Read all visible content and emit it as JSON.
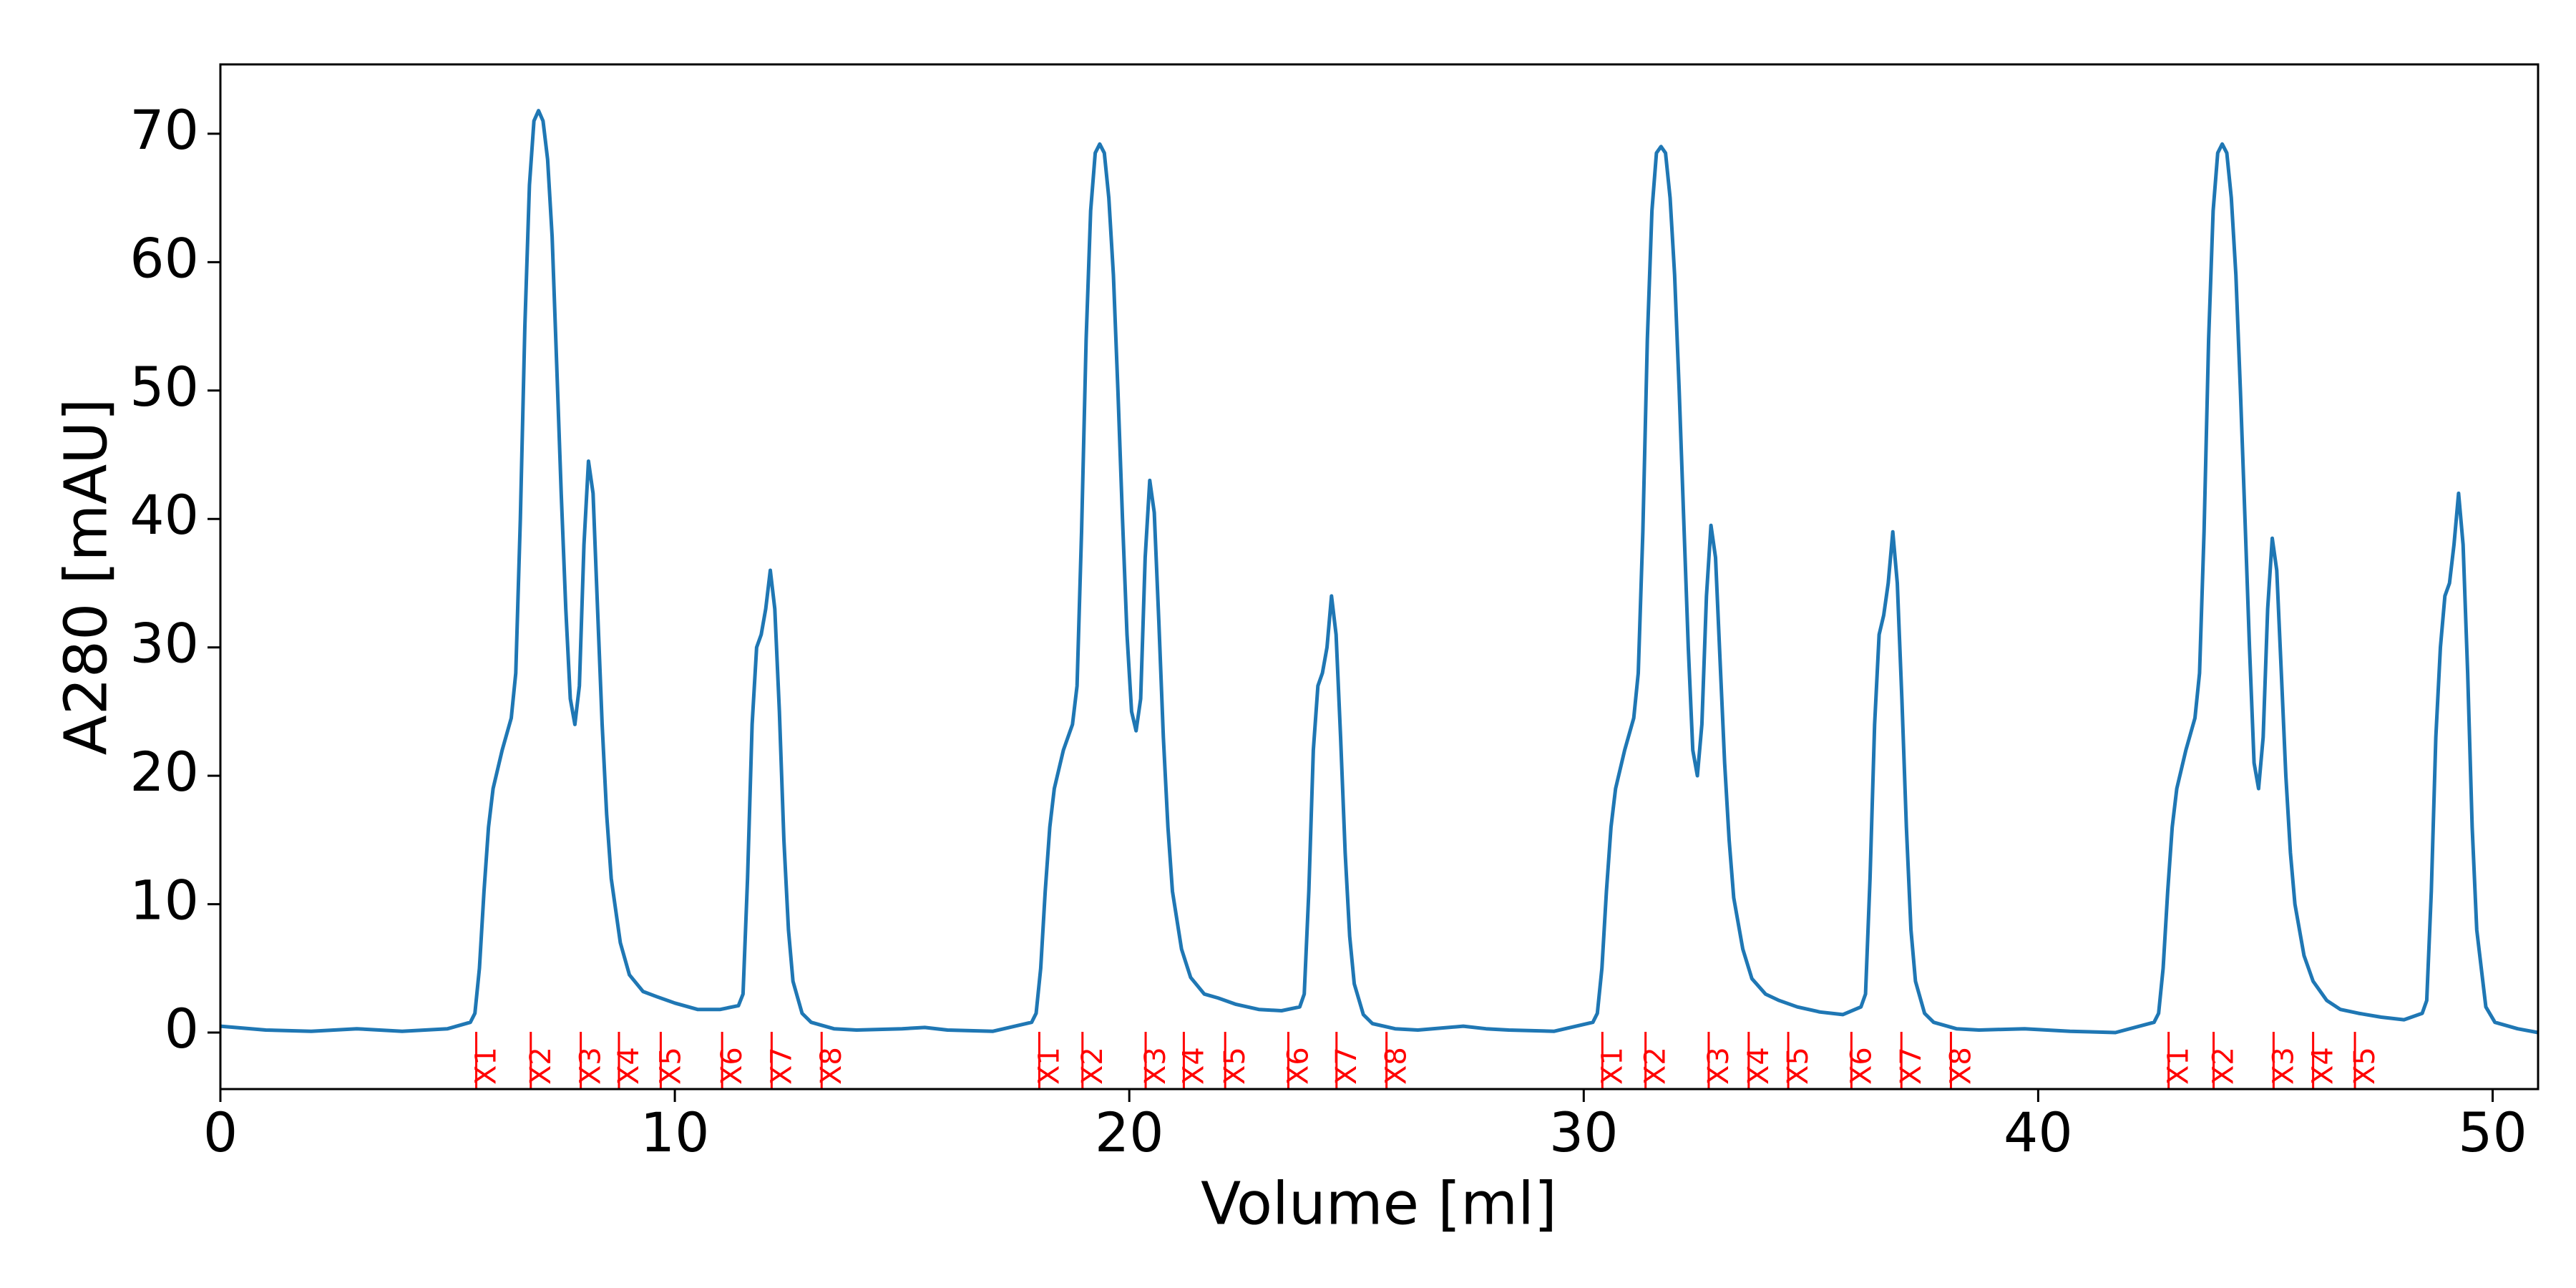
{
  "chart_data": {
    "type": "line",
    "xlabel": "Volume [ml]",
    "ylabel": "A280 [mAU]",
    "color": "#1f77b4",
    "xlim": [
      0,
      51
    ],
    "ylim": [
      -4.4,
      75.4
    ],
    "xticks": [
      0,
      10,
      20,
      30,
      40,
      50
    ],
    "yticks": [
      0,
      10,
      20,
      30,
      40,
      50,
      60,
      70
    ],
    "x": [
      0,
      1,
      2,
      3,
      4,
      5,
      5.5,
      5.6,
      5.7,
      5.8,
      5.9,
      6.0,
      6.2,
      6.4,
      6.5,
      6.6,
      6.7,
      6.8,
      6.9,
      7.0,
      7.1,
      7.2,
      7.3,
      7.4,
      7.5,
      7.6,
      7.7,
      7.8,
      7.9,
      8.0,
      8.1,
      8.2,
      8.3,
      8.4,
      8.5,
      8.6,
      8.8,
      9.0,
      9.3,
      9.6,
      10.0,
      10.5,
      11.0,
      11.4,
      11.5,
      11.6,
      11.7,
      11.8,
      11.9,
      12.0,
      12.1,
      12.2,
      12.3,
      12.4,
      12.5,
      12.6,
      12.8,
      13.0,
      13.5,
      14.0,
      15.0,
      15.5,
      16.0,
      17.0,
      17.85,
      17.95,
      18.05,
      18.15,
      18.25,
      18.35,
      18.55,
      18.75,
      18.85,
      18.95,
      19.05,
      19.15,
      19.25,
      19.35,
      19.45,
      19.55,
      19.65,
      19.75,
      19.85,
      19.95,
      20.05,
      20.15,
      20.25,
      20.35,
      20.45,
      20.55,
      20.65,
      20.75,
      20.85,
      20.95,
      21.15,
      21.35,
      21.65,
      21.95,
      22.35,
      22.85,
      23.35,
      23.75,
      23.85,
      23.95,
      24.05,
      24.15,
      24.25,
      24.35,
      24.45,
      24.55,
      24.65,
      24.75,
      24.85,
      24.95,
      25.15,
      25.35,
      25.85,
      26.35,
      27.35,
      27.85,
      28.35,
      29.35,
      30.2,
      30.3,
      30.4,
      30.5,
      30.6,
      30.7,
      30.9,
      31.1,
      31.2,
      31.3,
      31.4,
      31.5,
      31.6,
      31.7,
      31.8,
      31.9,
      32.0,
      32.1,
      32.2,
      32.3,
      32.4,
      32.5,
      32.6,
      32.7,
      32.8,
      32.9,
      33.0,
      33.1,
      33.2,
      33.3,
      33.5,
      33.7,
      34.0,
      34.3,
      34.7,
      35.2,
      35.7,
      36.1,
      36.2,
      36.3,
      36.4,
      36.5,
      36.6,
      36.7,
      36.8,
      36.9,
      37.0,
      37.1,
      37.2,
      37.3,
      37.5,
      37.7,
      38.2,
      38.7,
      39.7,
      40.2,
      40.7,
      41.7,
      42.55,
      42.65,
      42.75,
      42.85,
      42.95,
      43.05,
      43.25,
      43.45,
      43.55,
      43.65,
      43.75,
      43.85,
      43.95,
      44.05,
      44.15,
      44.25,
      44.35,
      44.45,
      44.55,
      44.65,
      44.75,
      44.85,
      44.95,
      45.05,
      45.15,
      45.25,
      45.35,
      45.45,
      45.55,
      45.65,
      45.85,
      46.05,
      46.35,
      46.65,
      47.05,
      47.55,
      48.05,
      48.45,
      48.55,
      48.65,
      48.75,
      48.85,
      48.95,
      49.05,
      49.15,
      49.25,
      49.35,
      49.45,
      49.55,
      49.65,
      49.85,
      50.05,
      50.55,
      51.0
    ],
    "values": [
      0.5,
      0.2,
      0.1,
      0.3,
      0.1,
      0.3,
      0.8,
      1.5,
      5,
      11,
      16,
      19,
      22,
      24.5,
      28,
      40,
      55,
      66,
      71,
      71.8,
      71,
      68,
      62,
      52,
      42,
      33,
      26,
      24,
      27,
      38,
      44.5,
      42,
      33,
      24,
      17,
      12,
      7,
      4.5,
      3.2,
      2.8,
      2.3,
      1.8,
      1.8,
      2.1,
      3,
      12,
      24,
      30,
      31,
      33,
      36,
      33,
      25,
      15,
      8,
      4,
      1.5,
      0.8,
      0.3,
      0.2,
      0.3,
      0.4,
      0.2,
      0.1,
      0.8,
      1.5,
      5,
      11,
      16,
      19,
      22,
      24,
      27,
      39,
      54,
      64,
      68.5,
      69.2,
      68.5,
      65,
      59,
      50,
      40,
      31,
      25,
      23.5,
      26,
      37,
      43,
      40.5,
      32,
      23,
      16,
      11,
      6.5,
      4.3,
      3,
      2.7,
      2.2,
      1.8,
      1.7,
      2,
      3,
      11,
      22,
      27,
      28,
      30,
      34,
      31,
      23,
      14,
      7.5,
      3.8,
      1.4,
      0.7,
      0.3,
      0.2,
      0.5,
      0.3,
      0.2,
      0.1,
      0.8,
      1.5,
      5,
      11,
      16,
      19,
      22,
      24.5,
      28,
      39,
      54,
      64,
      68.5,
      69,
      68.5,
      65,
      59,
      50,
      40,
      30,
      22,
      20,
      24,
      34,
      39.5,
      37,
      29,
      21,
      15,
      10.5,
      6.5,
      4.2,
      3,
      2.5,
      2,
      1.6,
      1.4,
      2,
      3,
      12,
      24,
      31,
      32.5,
      35,
      39,
      35,
      26,
      16,
      8,
      4,
      1.5,
      0.8,
      0.3,
      0.2,
      0.3,
      0.2,
      0.1,
      0,
      0.8,
      1.5,
      5,
      11,
      16,
      19,
      22,
      24.5,
      28,
      39,
      54,
      64,
      68.5,
      69.2,
      68.5,
      65,
      59,
      50,
      40,
      30,
      21,
      19,
      23,
      33,
      38.5,
      36,
      28,
      20,
      14,
      10,
      6,
      4,
      2.5,
      1.8,
      1.5,
      1.2,
      1,
      1.5,
      2.5,
      11,
      23,
      30,
      34,
      35,
      38,
      42,
      38,
      28,
      16,
      8,
      2,
      0.8,
      0.3,
      0
    ],
    "fractions": {
      "color": "red",
      "x": [
        5.63,
        6.83,
        7.93,
        8.77,
        9.69,
        11.04,
        12.13,
        13.23,
        18.02,
        18.97,
        20.36,
        21.2,
        22.11,
        23.5,
        24.56,
        25.66,
        30.41,
        31.36,
        32.75,
        33.63,
        34.5,
        35.89,
        36.99,
        38.08,
        42.87,
        43.86,
        45.18,
        46.05,
        46.97
      ],
      "labels": [
        "X1",
        "X2",
        "X3",
        "X4",
        "X5",
        "X6",
        "X7",
        "X8",
        "X1",
        "X2",
        "X3",
        "X4",
        "X5",
        "X6",
        "X7",
        "X8",
        "X1",
        "X2",
        "X3",
        "X4",
        "X5",
        "X6",
        "X7",
        "X8",
        "X1",
        "X2",
        "X3",
        "X4",
        "X5"
      ]
    }
  }
}
